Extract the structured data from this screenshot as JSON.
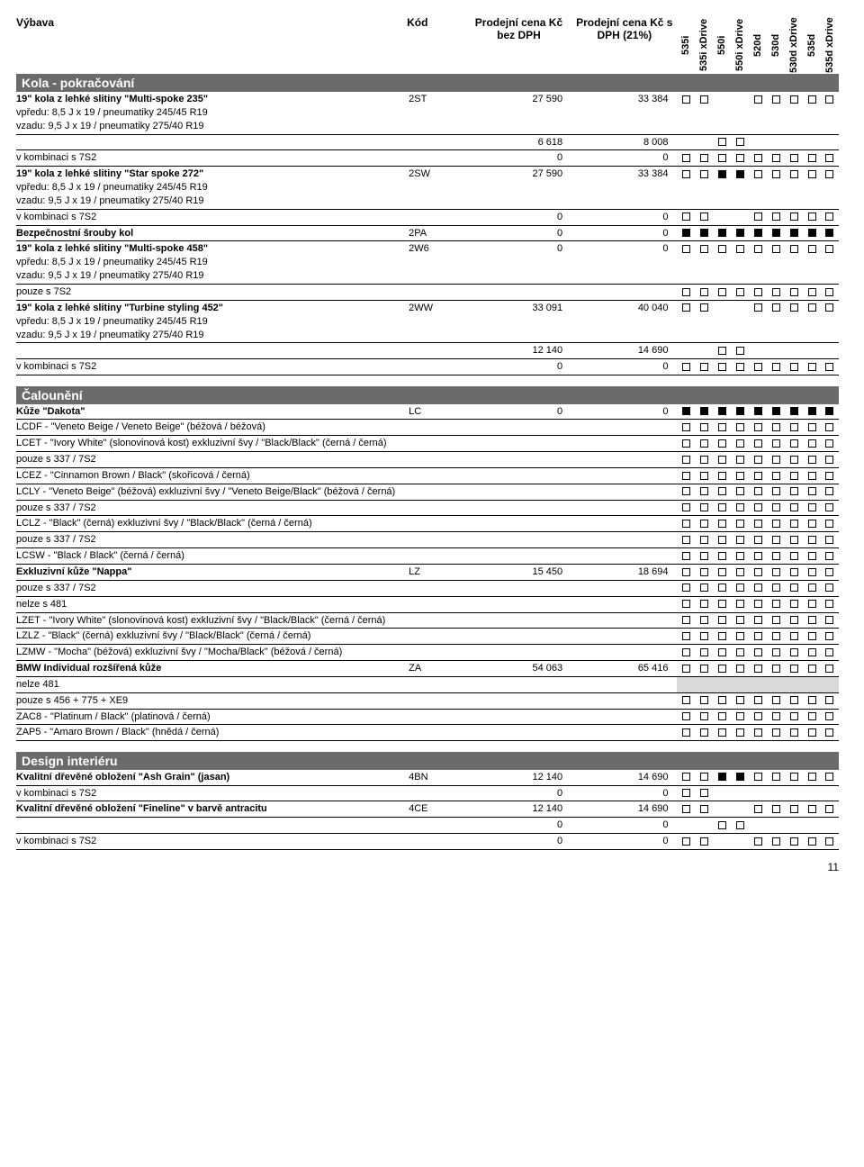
{
  "header": {
    "c1": "Výbava",
    "c2": "Kód",
    "c3": "Prodejní cena Kč bez DPH",
    "c4": "Prodejní cena Kč s DPH (21%)",
    "variants": [
      "535i",
      "535i xDrive",
      "550i",
      "550i xDrive",
      "520d",
      "530d",
      "530d xDrive",
      "535d",
      "535d xDrive"
    ]
  },
  "page_number": "11",
  "sections": [
    {
      "title": "Kola  - pokračování",
      "rows": [
        {
          "desc": "<b>19\" kola z lehké slitiny \"Multi-spoke 235\"</b><br>vpředu: 8,5 J x 19 / pneumatiky 245/45 R19<br>vzadu: 9,5 J x 19 / pneumatiky 275/40 R19",
          "code": "2ST",
          "p1": "27 590",
          "p2": "33 384",
          "av": [
            "o",
            "o",
            "",
            "",
            "o",
            "o",
            "o",
            "o",
            "o"
          ]
        },
        {
          "desc": "",
          "code": "",
          "p1": "6 618",
          "p2": "8 008",
          "av": [
            "",
            "",
            "o",
            "o",
            "",
            "",
            "",
            "",
            ""
          ]
        },
        {
          "desc": "v kombinaci s 7S2",
          "code": "",
          "p1": "0",
          "p2": "0",
          "av": [
            "o",
            "o",
            "o",
            "o",
            "o",
            "o",
            "o",
            "o",
            "o"
          ]
        },
        {
          "desc": "<b>19\" kola z lehké slitiny \"Star spoke 272\"</b><br>vpředu: 8,5 J x 19 / pneumatiky 245/45 R19<br>vzadu: 9,5 J x 19 / pneumatiky 275/40 R19",
          "code": "2SW",
          "p1": "27 590",
          "p2": "33 384",
          "av": [
            "o",
            "o",
            "f",
            "f",
            "o",
            "o",
            "o",
            "o",
            "o"
          ]
        },
        {
          "desc": "v kombinaci s 7S2",
          "code": "",
          "p1": "0",
          "p2": "0",
          "av": [
            "o",
            "o",
            "",
            "",
            "o",
            "o",
            "o",
            "o",
            "o"
          ]
        },
        {
          "desc": "<b>Bezpečnostní šrouby kol</b>",
          "code": "2PA",
          "p1": "0",
          "p2": "0",
          "av": [
            "f",
            "f",
            "f",
            "f",
            "f",
            "f",
            "f",
            "f",
            "f"
          ]
        },
        {
          "desc": "<b>19\" kola z lehké slitiny \"Multi-spoke 458\"</b><br>vpředu: 8,5 J x 19 / pneumatiky 245/45 R19<br>vzadu: 9,5 J x 19 / pneumatiky 275/40 R19",
          "code": "2W6",
          "p1": "0",
          "p2": "0",
          "av": [
            "o",
            "o",
            "o",
            "o",
            "o",
            "o",
            "o",
            "o",
            "o"
          ]
        },
        {
          "desc": "pouze s 7S2",
          "code": "",
          "p1": "",
          "p2": "",
          "av": [
            "o",
            "o",
            "o",
            "o",
            "o",
            "o",
            "o",
            "o",
            "o"
          ]
        },
        {
          "desc": "<b>19\" kola z lehké slitiny \"Turbine styling 452\"</b><br>vpředu: 8,5 J x 19 / pneumatiky 245/45 R19<br>vzadu: 9,5 J x 19 / pneumatiky 275/40 R19",
          "code": "2WW",
          "p1": "33 091",
          "p2": "40 040",
          "av": [
            "o",
            "o",
            "",
            "",
            "o",
            "o",
            "o",
            "o",
            "o"
          ]
        },
        {
          "desc": "",
          "code": "",
          "p1": "12 140",
          "p2": "14 690",
          "av": [
            "",
            "",
            "o",
            "o",
            "",
            "",
            "",
            "",
            ""
          ]
        },
        {
          "desc": "v kombinaci s 7S2",
          "code": "",
          "p1": "0",
          "p2": "0",
          "av": [
            "o",
            "o",
            "o",
            "o",
            "o",
            "o",
            "o",
            "o",
            "o"
          ]
        }
      ]
    },
    {
      "title": "Čalounění",
      "rows": [
        {
          "desc": "<b>Kůže \"Dakota\"</b>",
          "code": "LC",
          "p1": "0",
          "p2": "0",
          "av": [
            "f",
            "f",
            "f",
            "f",
            "f",
            "f",
            "f",
            "f",
            "f"
          ]
        },
        {
          "desc": "LCDF - \"Veneto Beige / Veneto Beige\" (béžová / béžová)",
          "code": "",
          "p1": "",
          "p2": "",
          "av": [
            "o",
            "o",
            "o",
            "o",
            "o",
            "o",
            "o",
            "o",
            "o"
          ]
        },
        {
          "desc": "LCET - \"Ivory White\" (slonovinová kost) exkluzivní švy / \"Black/Black\" (černá / černá)",
          "code": "",
          "p1": "",
          "p2": "",
          "av": [
            "o",
            "o",
            "o",
            "o",
            "o",
            "o",
            "o",
            "o",
            "o"
          ]
        },
        {
          "desc": "pouze s 337 / 7S2",
          "code": "",
          "p1": "",
          "p2": "",
          "av": [
            "o",
            "o",
            "o",
            "o",
            "o",
            "o",
            "o",
            "o",
            "o"
          ]
        },
        {
          "desc": "LCEZ - \"Cinnamon Brown / Black\" (skořicová / černá)",
          "code": "",
          "p1": "",
          "p2": "",
          "av": [
            "o",
            "o",
            "o",
            "o",
            "o",
            "o",
            "o",
            "o",
            "o"
          ]
        },
        {
          "desc": "LCLY - \"Veneto Beige\" (béžová) exkluzivní švy / \"Veneto Beige/Black\" (béžová / černá)",
          "code": "",
          "p1": "",
          "p2": "",
          "av": [
            "o",
            "o",
            "o",
            "o",
            "o",
            "o",
            "o",
            "o",
            "o"
          ]
        },
        {
          "desc": "pouze s 337 / 7S2",
          "code": "",
          "p1": "",
          "p2": "",
          "av": [
            "o",
            "o",
            "o",
            "o",
            "o",
            "o",
            "o",
            "o",
            "o"
          ]
        },
        {
          "desc": "LCLZ - \"Black\" (černá) exkluzivní švy / \"Black/Black\" (černá / černá)",
          "code": "",
          "p1": "",
          "p2": "",
          "av": [
            "o",
            "o",
            "o",
            "o",
            "o",
            "o",
            "o",
            "o",
            "o"
          ]
        },
        {
          "desc": "pouze s 337 / 7S2",
          "code": "",
          "p1": "",
          "p2": "",
          "av": [
            "o",
            "o",
            "o",
            "o",
            "o",
            "o",
            "o",
            "o",
            "o"
          ]
        },
        {
          "desc": "LCSW - \"Black / Black\" (černá / černá)",
          "code": "",
          "p1": "",
          "p2": "",
          "av": [
            "o",
            "o",
            "o",
            "o",
            "o",
            "o",
            "o",
            "o",
            "o"
          ]
        },
        {
          "desc": "<b>Exkluzivní kůže \"Nappa\"</b>",
          "code": "LZ",
          "p1": "15 450",
          "p2": "18 694",
          "av": [
            "o",
            "o",
            "o",
            "o",
            "o",
            "o",
            "o",
            "o",
            "o"
          ]
        },
        {
          "desc": "pouze s 337 / 7S2",
          "code": "",
          "p1": "",
          "p2": "",
          "av": [
            "o",
            "o",
            "o",
            "o",
            "o",
            "o",
            "o",
            "o",
            "o"
          ]
        },
        {
          "desc": "nelze s 481",
          "code": "",
          "p1": "",
          "p2": "",
          "av": [
            "o",
            "o",
            "o",
            "o",
            "o",
            "o",
            "o",
            "o",
            "o"
          ]
        },
        {
          "desc": "LZET - \"Ivory White\" (slonovinová kost) exkluzivní švy / \"Black/Black\" (černá / černá)",
          "code": "",
          "p1": "",
          "p2": "",
          "av": [
            "o",
            "o",
            "o",
            "o",
            "o",
            "o",
            "o",
            "o",
            "o"
          ]
        },
        {
          "desc": "LZLZ - \"Black\" (černá) exkluzivní švy / \"Black/Black\" (černá / černá)",
          "code": "",
          "p1": "",
          "p2": "",
          "av": [
            "o",
            "o",
            "o",
            "o",
            "o",
            "o",
            "o",
            "o",
            "o"
          ]
        },
        {
          "desc": "LZMW - \"Mocha\" (béžová) exkluzivní švy / \"Mocha/Black\" (béžová / černá)",
          "code": "",
          "p1": "",
          "p2": "",
          "av": [
            "o",
            "o",
            "o",
            "o",
            "o",
            "o",
            "o",
            "o",
            "o"
          ]
        },
        {
          "desc": "<b>BMW Individual rozšířená kůže</b>",
          "code": "ZA",
          "p1": "54 063",
          "p2": "65 416",
          "av": [
            "o",
            "o",
            "o",
            "o",
            "o",
            "o",
            "o",
            "o",
            "o"
          ]
        },
        {
          "desc": "nelze  481",
          "code": "",
          "p1": "",
          "p2": "",
          "av": [
            "g",
            "g",
            "g",
            "g",
            "g",
            "g",
            "g",
            "g",
            "g"
          ]
        },
        {
          "desc": "pouze s 456 + 775 + XE9",
          "code": "",
          "p1": "",
          "p2": "",
          "av": [
            "o",
            "o",
            "o",
            "o",
            "o",
            "o",
            "o",
            "o",
            "o"
          ]
        },
        {
          "desc": "ZAC8 - \"Platinum / Black\" (platinová / černá)",
          "code": "",
          "p1": "",
          "p2": "",
          "av": [
            "o",
            "o",
            "o",
            "o",
            "o",
            "o",
            "o",
            "o",
            "o"
          ]
        },
        {
          "desc": "ZAP5 - \"Amaro Brown / Black\" (hnědá / černá)",
          "code": "",
          "p1": "",
          "p2": "",
          "av": [
            "o",
            "o",
            "o",
            "o",
            "o",
            "o",
            "o",
            "o",
            "o"
          ]
        }
      ]
    },
    {
      "title": "Design interiéru",
      "rows": [
        {
          "desc": "<b>Kvalitní dřevěné obložení \"Ash Grain\" (jasan)</b>",
          "code": "4BN",
          "p1": "12 140",
          "p2": "14 690",
          "av": [
            "o",
            "o",
            "f",
            "f",
            "o",
            "o",
            "o",
            "o",
            "o"
          ]
        },
        {
          "desc": "v kombinaci s 7S2",
          "code": "",
          "p1": "0",
          "p2": "0",
          "av": [
            "o",
            "o",
            "",
            "",
            "",
            "",
            "",
            "",
            ""
          ]
        },
        {
          "desc": "<b>Kvalitní dřevěné obložení \"Fineline\" v barvě antracitu</b>",
          "code": "4CE",
          "p1": "12 140",
          "p2": "14 690",
          "av": [
            "o",
            "o",
            "",
            "",
            "o",
            "o",
            "o",
            "o",
            "o"
          ]
        },
        {
          "desc": "",
          "code": "",
          "p1": "0",
          "p2": "0",
          "av": [
            "",
            "",
            "o",
            "o",
            "",
            "",
            "",
            "",
            ""
          ]
        },
        {
          "desc": "v kombinaci s 7S2",
          "code": "",
          "p1": "0",
          "p2": "0",
          "av": [
            "o",
            "o",
            "",
            "",
            "o",
            "o",
            "o",
            "o",
            "o"
          ]
        }
      ]
    }
  ]
}
